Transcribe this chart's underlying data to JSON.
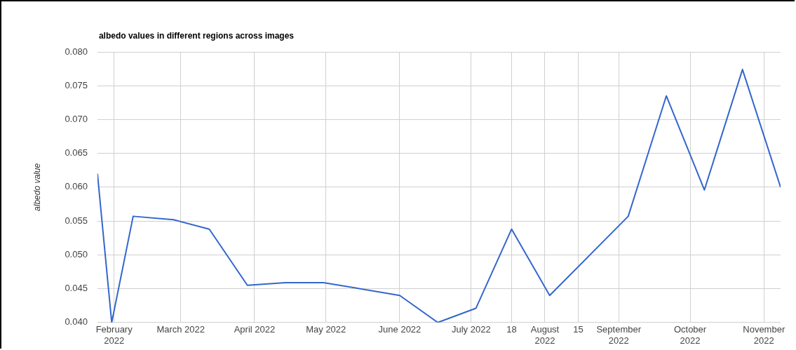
{
  "chart_data": {
    "type": "line",
    "title": "albedo values in different regions across images",
    "ylabel": "albedo value",
    "x": [
      "2022-01-25",
      "2022-01-31",
      "2022-02-09",
      "2022-02-26",
      "2022-03-13",
      "2022-03-29",
      "2022-04-14",
      "2022-04-30",
      "2022-06-01",
      "2022-06-17",
      "2022-07-03",
      "2022-07-18",
      "2022-08-03",
      "2022-09-05",
      "2022-09-21",
      "2022-10-07",
      "2022-10-23",
      "2022-11-08"
    ],
    "series": [
      {
        "color": "#3366cc",
        "values": [
          0.062,
          0.04,
          0.0557,
          0.0552,
          0.0538,
          0.0455,
          0.0459,
          0.0459,
          0.044,
          0.04,
          0.0421,
          0.0538,
          0.044,
          0.0557,
          0.0735,
          0.0596,
          0.0774,
          0.06
        ]
      }
    ],
    "xlim": [
      "2022-01-25",
      "2022-11-08"
    ],
    "xticks": [
      {
        "value": "2022-02-01",
        "label": "February 2022"
      },
      {
        "value": "2022-03-01",
        "label": "March 2022"
      },
      {
        "value": "2022-04-01",
        "label": "April 2022"
      },
      {
        "value": "2022-05-01",
        "label": "May 2022"
      },
      {
        "value": "2022-06-01",
        "label": "June 2022"
      },
      {
        "value": "2022-07-01",
        "label": "July 2022"
      },
      {
        "value": "2022-07-18",
        "label": "18"
      },
      {
        "value": "2022-08-01",
        "label": "August 2022"
      },
      {
        "value": "2022-08-15",
        "label": "15"
      },
      {
        "value": "2022-09-01",
        "label": "September 2022"
      },
      {
        "value": "2022-10-01",
        "label": "October 2022"
      },
      {
        "value": "2022-11-01",
        "label": "November 2022"
      }
    ],
    "ylim": [
      0.04,
      0.08
    ],
    "yticks": [
      {
        "value": 0.04,
        "label": "0.040"
      },
      {
        "value": 0.045,
        "label": "0.045"
      },
      {
        "value": 0.05,
        "label": "0.050"
      },
      {
        "value": 0.055,
        "label": "0.055"
      },
      {
        "value": 0.06,
        "label": "0.060"
      },
      {
        "value": 0.065,
        "label": "0.065"
      },
      {
        "value": 0.07,
        "label": "0.070"
      },
      {
        "value": 0.075,
        "label": "0.075"
      },
      {
        "value": 0.08,
        "label": "0.080"
      }
    ],
    "grid": true,
    "legend": false,
    "marker": "none",
    "line_style": "solid"
  }
}
